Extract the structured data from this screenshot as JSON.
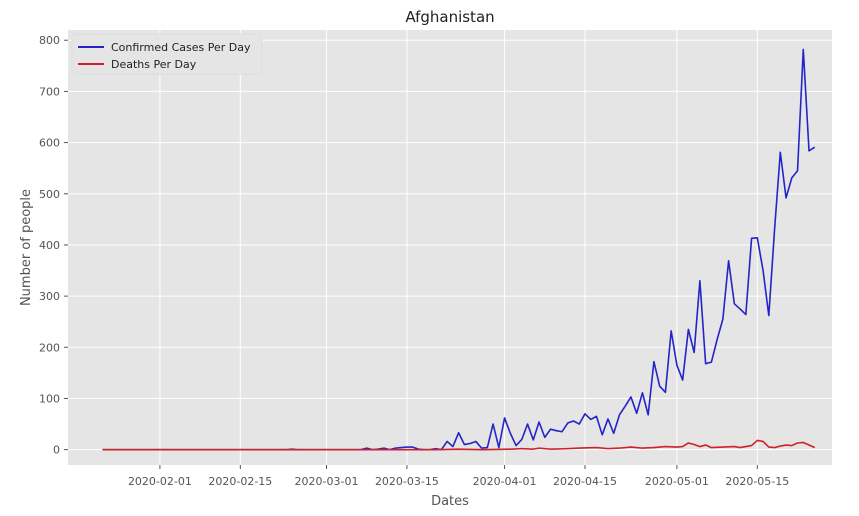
{
  "chart_data": {
    "type": "line",
    "title": "Afghanistan",
    "xlabel": "Dates",
    "ylabel": "Number of people",
    "xlim": [
      "2020-01-16",
      "2020-05-28"
    ],
    "ylim": [
      -30,
      820
    ],
    "x_ticks": [
      "2020-02-01",
      "2020-02-15",
      "2020-03-01",
      "2020-03-15",
      "2020-04-01",
      "2020-04-15",
      "2020-05-01",
      "2020-05-15"
    ],
    "y_ticks": [
      0,
      100,
      200,
      300,
      400,
      500,
      600,
      700,
      800
    ],
    "grid": true,
    "legend_position": "top-left",
    "background": "#e5e5e5",
    "grid_color": "#ffffff",
    "series": [
      {
        "name": "Confirmed Cases Per Day",
        "color": "#2424c8",
        "points": [
          [
            "2020-01-22",
            0
          ],
          [
            "2020-02-23",
            0
          ],
          [
            "2020-02-24",
            1
          ],
          [
            "2020-02-25",
            0
          ],
          [
            "2020-03-07",
            0
          ],
          [
            "2020-03-08",
            3
          ],
          [
            "2020-03-09",
            0
          ],
          [
            "2020-03-10",
            1
          ],
          [
            "2020-03-11",
            3
          ],
          [
            "2020-03-12",
            0
          ],
          [
            "2020-03-13",
            3
          ],
          [
            "2020-03-14",
            4
          ],
          [
            "2020-03-15",
            5
          ],
          [
            "2020-03-16",
            5
          ],
          [
            "2020-03-17",
            1
          ],
          [
            "2020-03-18",
            0
          ],
          [
            "2020-03-19",
            0
          ],
          [
            "2020-03-20",
            2
          ],
          [
            "2020-03-21",
            0
          ],
          [
            "2020-03-22",
            16
          ],
          [
            "2020-03-23",
            6
          ],
          [
            "2020-03-24",
            33
          ],
          [
            "2020-03-25",
            10
          ],
          [
            "2020-03-26",
            12
          ],
          [
            "2020-03-27",
            16
          ],
          [
            "2020-03-28",
            3
          ],
          [
            "2020-03-29",
            4
          ],
          [
            "2020-03-30",
            50
          ],
          [
            "2020-03-31",
            4
          ],
          [
            "2020-04-01",
            62
          ],
          [
            "2020-04-02",
            32
          ],
          [
            "2020-04-03",
            8
          ],
          [
            "2020-04-04",
            20
          ],
          [
            "2020-04-05",
            50
          ],
          [
            "2020-04-06",
            19
          ],
          [
            "2020-04-07",
            54
          ],
          [
            "2020-04-08",
            24
          ],
          [
            "2020-04-09",
            40
          ],
          [
            "2020-04-10",
            37
          ],
          [
            "2020-04-11",
            35
          ],
          [
            "2020-04-12",
            52
          ],
          [
            "2020-04-13",
            56
          ],
          [
            "2020-04-14",
            50
          ],
          [
            "2020-04-15",
            70
          ],
          [
            "2020-04-16",
            59
          ],
          [
            "2020-04-17",
            65
          ],
          [
            "2020-04-18",
            29
          ],
          [
            "2020-04-19",
            60
          ],
          [
            "2020-04-20",
            32
          ],
          [
            "2020-04-21",
            68
          ],
          [
            "2020-04-22",
            85
          ],
          [
            "2020-04-23",
            103
          ],
          [
            "2020-04-24",
            71
          ],
          [
            "2020-04-25",
            111
          ],
          [
            "2020-04-26",
            68
          ],
          [
            "2020-04-27",
            172
          ],
          [
            "2020-04-28",
            124
          ],
          [
            "2020-04-29",
            112
          ],
          [
            "2020-04-30",
            232
          ],
          [
            "2020-05-01",
            165
          ],
          [
            "2020-05-02",
            136
          ],
          [
            "2020-05-03",
            235
          ],
          [
            "2020-05-04",
            190
          ],
          [
            "2020-05-05",
            330
          ],
          [
            "2020-05-06",
            168
          ],
          [
            "2020-05-07",
            171
          ],
          [
            "2020-05-08",
            215
          ],
          [
            "2020-05-09",
            255
          ],
          [
            "2020-05-10",
            369
          ],
          [
            "2020-05-11",
            285
          ],
          [
            "2020-05-12",
            275
          ],
          [
            "2020-05-13",
            264
          ],
          [
            "2020-05-14",
            413
          ],
          [
            "2020-05-15",
            414
          ],
          [
            "2020-05-16",
            350
          ],
          [
            "2020-05-17",
            262
          ],
          [
            "2020-05-18",
            430
          ],
          [
            "2020-05-19",
            581
          ],
          [
            "2020-05-20",
            492
          ],
          [
            "2020-05-21",
            531
          ],
          [
            "2020-05-22",
            545
          ],
          [
            "2020-05-23",
            782
          ],
          [
            "2020-05-24",
            584
          ],
          [
            "2020-05-25",
            591
          ]
        ]
      },
      {
        "name": "Deaths Per Day",
        "color": "#d0202a",
        "points": [
          [
            "2020-01-22",
            0
          ],
          [
            "2020-03-20",
            0
          ],
          [
            "2020-03-24",
            1
          ],
          [
            "2020-03-28",
            0
          ],
          [
            "2020-04-02",
            1
          ],
          [
            "2020-04-04",
            2
          ],
          [
            "2020-04-06",
            1
          ],
          [
            "2020-04-07",
            3
          ],
          [
            "2020-04-09",
            1
          ],
          [
            "2020-04-12",
            2
          ],
          [
            "2020-04-14",
            3
          ],
          [
            "2020-04-17",
            4
          ],
          [
            "2020-04-19",
            2
          ],
          [
            "2020-04-21",
            3
          ],
          [
            "2020-04-23",
            5
          ],
          [
            "2020-04-25",
            3
          ],
          [
            "2020-04-27",
            4
          ],
          [
            "2020-04-29",
            6
          ],
          [
            "2020-05-01",
            5
          ],
          [
            "2020-05-02",
            6
          ],
          [
            "2020-05-03",
            13
          ],
          [
            "2020-05-04",
            10
          ],
          [
            "2020-05-05",
            6
          ],
          [
            "2020-05-06",
            9
          ],
          [
            "2020-05-07",
            4
          ],
          [
            "2020-05-09",
            5
          ],
          [
            "2020-05-11",
            6
          ],
          [
            "2020-05-12",
            4
          ],
          [
            "2020-05-13",
            6
          ],
          [
            "2020-05-14",
            8
          ],
          [
            "2020-05-15",
            18
          ],
          [
            "2020-05-16",
            16
          ],
          [
            "2020-05-17",
            5
          ],
          [
            "2020-05-18",
            4
          ],
          [
            "2020-05-19",
            7
          ],
          [
            "2020-05-20",
            9
          ],
          [
            "2020-05-21",
            8
          ],
          [
            "2020-05-22",
            13
          ],
          [
            "2020-05-23",
            14
          ],
          [
            "2020-05-24",
            9
          ],
          [
            "2020-05-25",
            4
          ]
        ]
      }
    ]
  }
}
